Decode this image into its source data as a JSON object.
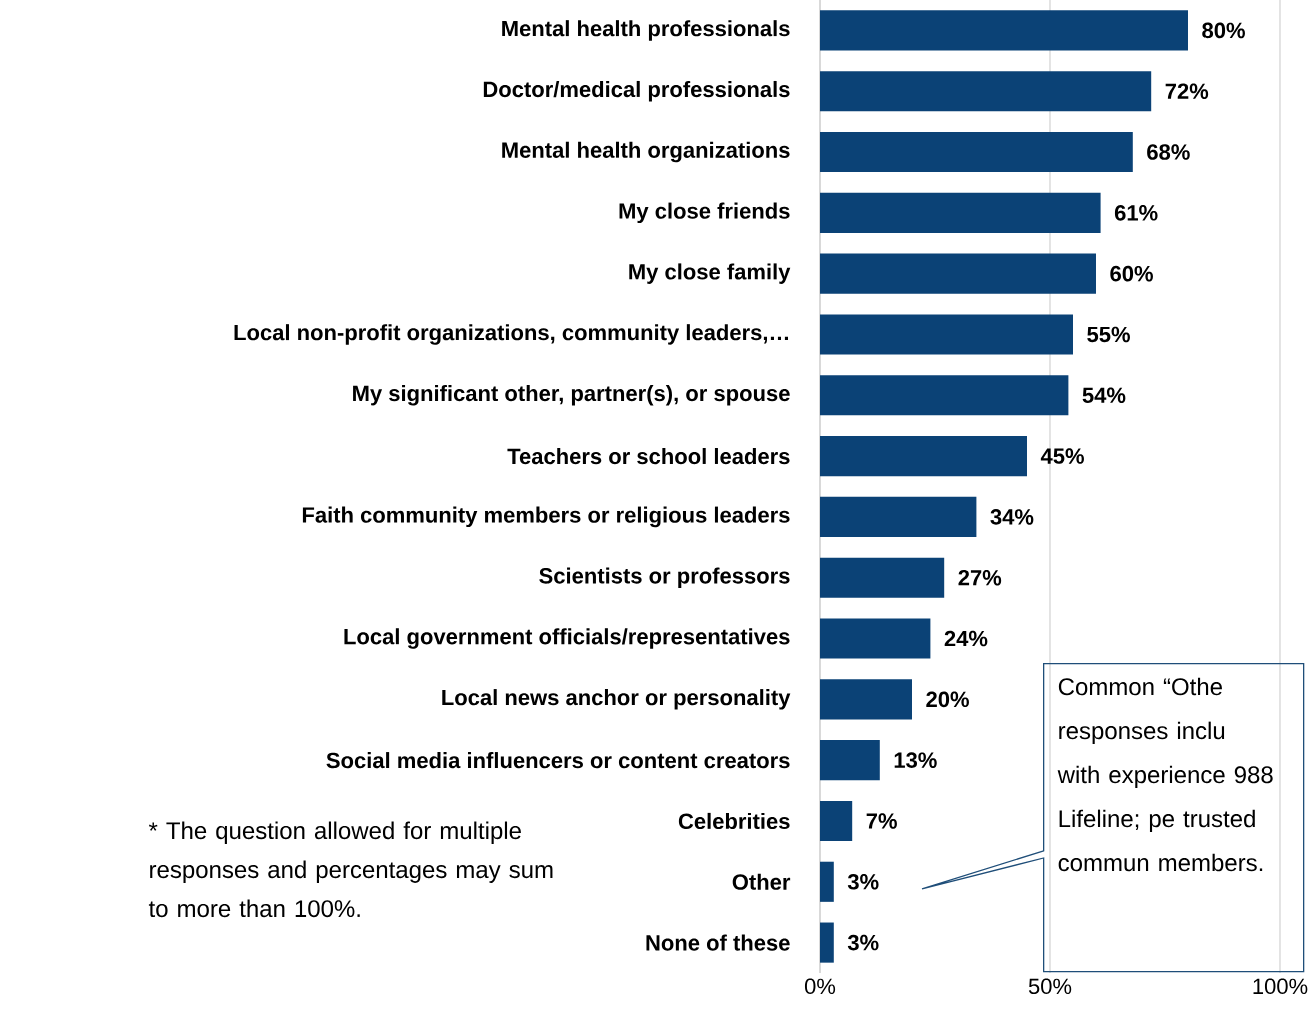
{
  "chart_data": {
    "type": "bar",
    "orientation": "horizontal",
    "categories": [
      "Mental health professionals",
      "Doctor/medical professionals",
      "Mental health organizations",
      "My close friends",
      "My close family",
      "Local non-profit organizations, community leaders,…",
      "My significant other, partner(s), or spouse",
      "Teachers or school leaders",
      "Faith community members or religious leaders",
      "Scientists or professors",
      "Local government officials/representatives",
      "Local news anchor or personality",
      "Social media influencers or content creators",
      "Celebrities",
      "Other",
      "None of these"
    ],
    "values": [
      80,
      72,
      68,
      61,
      60,
      55,
      54,
      45,
      34,
      27,
      24,
      20,
      13,
      7,
      3,
      3
    ],
    "value_labels": [
      "80%",
      "72%",
      "68%",
      "61%",
      "60%",
      "55%",
      "54%",
      "45%",
      "34%",
      "27%",
      "24%",
      "20%",
      "13%",
      "7%",
      "3%",
      "3%"
    ],
    "color": "#0b4276",
    "xlim": [
      0,
      100
    ],
    "xticks": [
      {
        "value": 0,
        "label": "0%"
      },
      {
        "value": 50,
        "label": "50%"
      },
      {
        "value": 100,
        "label": "100%"
      }
    ],
    "grid": "x",
    "annotations": [
      "* The question allowed for multiple responses and percentages may sum to more than 100%.",
      "Common “Othe responses inclu with experience 988 Lifeline; pe trusted commun members."
    ]
  }
}
